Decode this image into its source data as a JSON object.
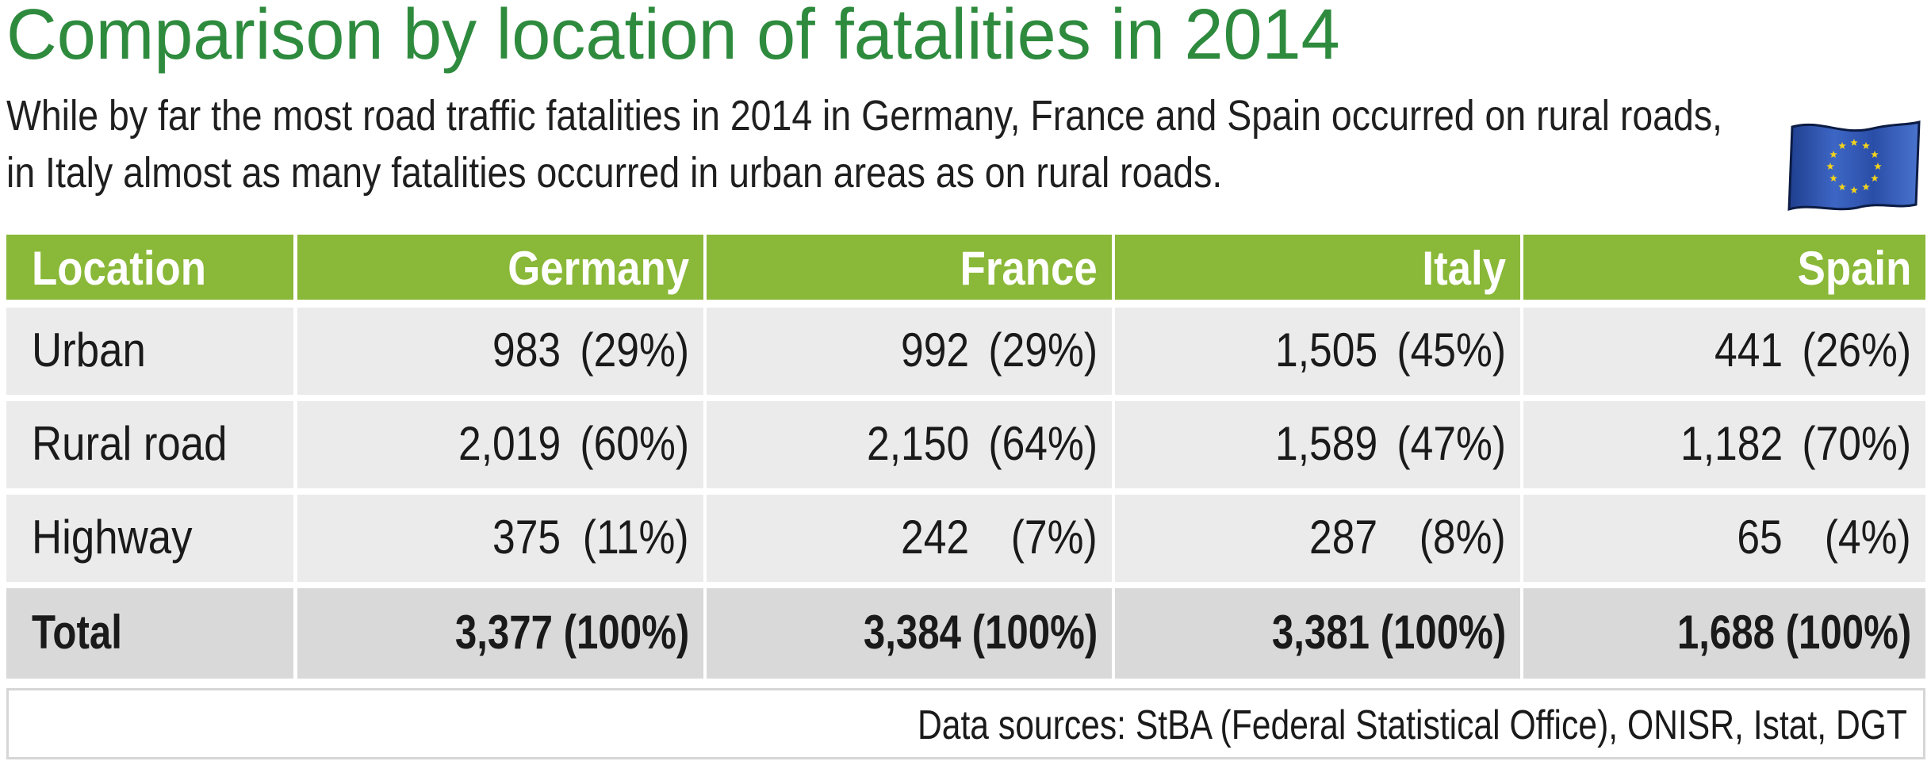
{
  "title": "Comparison by location of fatalities in 2014",
  "subtitle_lines": [
    "While by far the most road traffic fatalities in 2014 in Germany, France and Spain occurred on rural roads,",
    "in Italy almost as many fatalities occurred in urban areas as on rural roads."
  ],
  "source": "Data sources: StBA (Federal Statistical Office), ONISR, Istat, DGT",
  "colors": {
    "title": "#2e8b3e",
    "header_bg": "#8ab838",
    "row_bg": "#ebebeb",
    "total_bg": "#d9d9d9",
    "flag_blue": "#2f55b0",
    "flag_star": "#f2d21c"
  },
  "icons": {
    "flag": "eu-flag-icon"
  },
  "chart_data": {
    "type": "table",
    "columns": [
      "Location",
      "Germany",
      "France",
      "Italy",
      "Spain"
    ],
    "rows": [
      {
        "label": "Urban",
        "values": [
          983,
          992,
          1505,
          441
        ],
        "display": [
          "983",
          "992",
          "1,505",
          "441"
        ],
        "percent": [
          "(29%)",
          "(29%)",
          "(45%)",
          "(26%)"
        ]
      },
      {
        "label": "Rural road",
        "values": [
          2019,
          2150,
          1589,
          1182
        ],
        "display": [
          "2,019",
          "2,150",
          "1,589",
          "1,182"
        ],
        "percent": [
          "(60%)",
          "(64%)",
          "(47%)",
          "(70%)"
        ]
      },
      {
        "label": "Highway",
        "values": [
          375,
          242,
          287,
          65
        ],
        "display": [
          "375",
          "242",
          "287",
          "65"
        ],
        "percent": [
          "(11%)",
          "(7%)",
          "(8%)",
          "(4%)"
        ]
      }
    ],
    "total": {
      "label": "Total",
      "values": [
        3377,
        3384,
        3381,
        1688
      ],
      "display": [
        "3,377 (100%)",
        "3,384 (100%)",
        "3,381 (100%)",
        "1,688 (100%)"
      ]
    }
  }
}
